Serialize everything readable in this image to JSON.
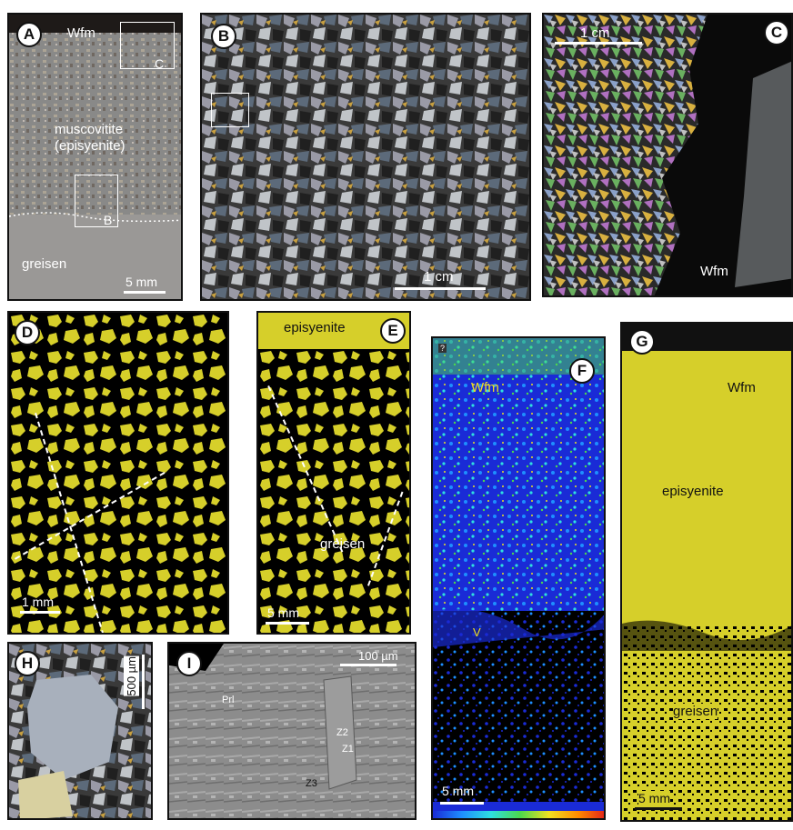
{
  "panels": {
    "A": {
      "letter": "A",
      "top_label": "Wfm",
      "mid_label_1": "muscovitite",
      "mid_label_2": "(episyenite)",
      "bottom_label": "greisen",
      "box_c": "C",
      "box_b": "B",
      "scale": "5 mm"
    },
    "B": {
      "letter": "B",
      "scale": "1 cm"
    },
    "C": {
      "letter": "C",
      "scale": "1 cm",
      "label": "Wfm"
    },
    "D": {
      "letter": "D",
      "scale": "1 mm"
    },
    "E": {
      "letter": "E",
      "top_label": "episyenite",
      "mid_label": "greisen",
      "scale": "5 mm"
    },
    "F": {
      "letter": "F",
      "label_wfm": "Wfm",
      "label_v": "V",
      "scale": "5 mm",
      "corner_mark": "?"
    },
    "G": {
      "letter": "G",
      "label_wfm": "Wfm",
      "label_epi": "episyenite",
      "label_greisen": "greisen",
      "scale": "5 mm"
    },
    "H": {
      "letter": "H",
      "scale": "500 µm"
    },
    "I": {
      "letter": "I",
      "scale": "100 µm",
      "prl": "Prl",
      "z1": "Z1",
      "z2": "Z2",
      "z3": "Z3"
    }
  },
  "colors": {
    "yellow": "#d6cf2a",
    "black": "#000000",
    "rainbow": [
      "#1a2bd6",
      "#1e8fff",
      "#2ee0e0",
      "#4cd84c",
      "#f0e020",
      "#ff8a00",
      "#e01a1a"
    ]
  }
}
